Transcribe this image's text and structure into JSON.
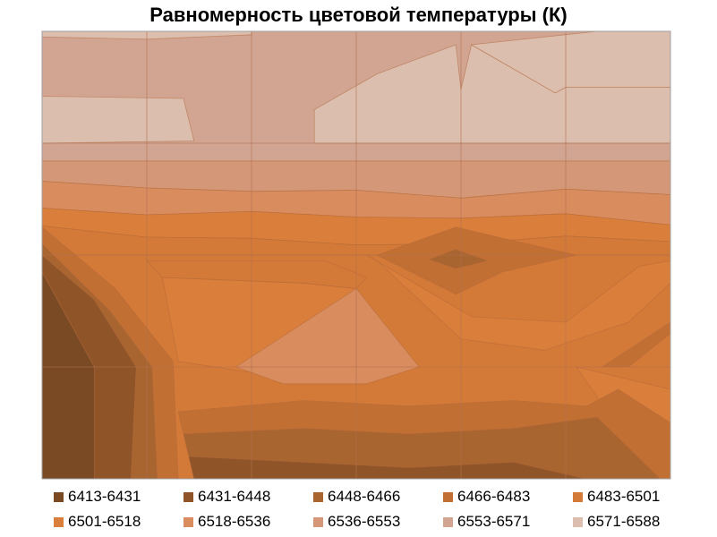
{
  "chart_data": {
    "type": "heatmap",
    "subtype": "contour",
    "title": "Равномерность цветовой температуры (К)",
    "grid": true,
    "legend_position": "bottom",
    "grid_size": {
      "cols": 6,
      "rows": 4
    },
    "legend": [
      {
        "label": "6413-6431",
        "color": "#7a4a25"
      },
      {
        "label": "6431-6448",
        "color": "#8f5529"
      },
      {
        "label": "6448-6466",
        "color": "#a8652f"
      },
      {
        "label": "6466-6483",
        "color": "#c26f33"
      },
      {
        "label": "6483-6501",
        "color": "#d47a38"
      },
      {
        "label": "6501-6518",
        "color": "#da7e3b"
      },
      {
        "label": "6518-6536",
        "color": "#d98d5e"
      },
      {
        "label": "6536-6553",
        "color": "#d49878"
      },
      {
        "label": "6553-6571",
        "color": "#d1a592"
      },
      {
        "label": "6571-6588",
        "color": "#dcbeae"
      }
    ],
    "layers": [
      {
        "band": 4,
        "pts": [
          [
            0,
            0
          ],
          [
            6,
            0
          ],
          [
            6,
            4
          ],
          [
            0,
            4
          ]
        ]
      },
      {
        "band": 8,
        "pts": [
          [
            0,
            0
          ],
          [
            6,
            0
          ],
          [
            6,
            1.16
          ],
          [
            0,
            1.16
          ]
        ]
      },
      {
        "band": 7,
        "pts": [
          [
            0,
            1.16
          ],
          [
            6,
            1.16
          ],
          [
            6,
            1.46
          ],
          [
            5,
            1.41
          ],
          [
            4,
            1.49
          ],
          [
            3,
            1.42
          ],
          [
            2,
            1.43
          ],
          [
            1,
            1.4
          ],
          [
            0,
            1.34
          ]
        ]
      },
      {
        "band": 6,
        "pts": [
          [
            0,
            1.34
          ],
          [
            1,
            1.4
          ],
          [
            2,
            1.43
          ],
          [
            3,
            1.42
          ],
          [
            4,
            1.49
          ],
          [
            5,
            1.41
          ],
          [
            6,
            1.46
          ],
          [
            6,
            1.73
          ],
          [
            5,
            1.63
          ],
          [
            4,
            1.67
          ],
          [
            3,
            1.66
          ],
          [
            2,
            1.61
          ],
          [
            1,
            1.64
          ],
          [
            0,
            1.58
          ]
        ]
      },
      {
        "band": 5,
        "pts": [
          [
            0,
            1.58
          ],
          [
            1,
            1.64
          ],
          [
            2,
            1.61
          ],
          [
            3,
            1.66
          ],
          [
            4,
            1.67
          ],
          [
            5,
            1.63
          ],
          [
            6,
            1.73
          ],
          [
            6,
            1.88
          ],
          [
            5,
            1.83
          ],
          [
            4,
            1.9
          ],
          [
            3,
            1.91
          ],
          [
            2,
            1.85
          ],
          [
            1,
            1.84
          ],
          [
            0,
            1.74
          ]
        ]
      },
      {
        "band": 4,
        "pts": [
          [
            0,
            1.74
          ],
          [
            1,
            1.84
          ],
          [
            2,
            1.85
          ],
          [
            3,
            1.91
          ],
          [
            4,
            1.9
          ],
          [
            5,
            1.83
          ],
          [
            6,
            1.88
          ],
          [
            6,
            2
          ],
          [
            5,
            2
          ],
          [
            4,
            2
          ],
          [
            3,
            2
          ],
          [
            2,
            2
          ],
          [
            1,
            2
          ],
          [
            0,
            2
          ]
        ]
      },
      {
        "band": 3,
        "pts": [
          [
            3.2,
            2
          ],
          [
            3.95,
            1.75
          ],
          [
            4.4,
            1.85
          ],
          [
            5.1,
            2
          ],
          [
            4.4,
            2.15
          ],
          [
            3.95,
            2.35
          ]
        ]
      },
      {
        "band": 2,
        "pts": [
          [
            3.95,
            1.95
          ],
          [
            4.25,
            2.05
          ],
          [
            3.95,
            2.12
          ],
          [
            3.7,
            2.04
          ]
        ]
      },
      {
        "band": 0,
        "pts": [
          [
            0,
            2.15
          ],
          [
            0.5,
            3
          ],
          [
            0.5,
            4
          ],
          [
            0,
            4
          ]
        ]
      },
      {
        "band": 1,
        "pts": [
          [
            0,
            2.15
          ],
          [
            0.5,
            3
          ],
          [
            0.5,
            4
          ],
          [
            0.85,
            4
          ],
          [
            0.9,
            3
          ],
          [
            0.5,
            2.4
          ],
          [
            0,
            2
          ]
        ]
      },
      {
        "band": 2,
        "pts": [
          [
            0.85,
            4
          ],
          [
            0.9,
            3
          ],
          [
            0.5,
            2.4
          ],
          [
            0,
            2
          ],
          [
            0,
            1.9
          ],
          [
            0.65,
            2.5
          ],
          [
            1.05,
            3
          ],
          [
            1.1,
            4
          ]
        ]
      },
      {
        "band": 3,
        "pts": [
          [
            1.1,
            4
          ],
          [
            1.05,
            3
          ],
          [
            0.65,
            2.5
          ],
          [
            0,
            1.9
          ],
          [
            0,
            1.75
          ],
          [
            0.7,
            2.3
          ],
          [
            1.25,
            2.95
          ],
          [
            1.3,
            4
          ]
        ]
      },
      {
        "band": 5,
        "pts": [
          [
            1.15,
            2.2
          ],
          [
            2.5,
            2.25
          ],
          [
            3,
            2.3
          ],
          [
            2.5,
            3.0
          ],
          [
            2,
            3.05
          ],
          [
            1.3,
            2.95
          ]
        ]
      },
      {
        "band": 4,
        "pts": [
          [
            1,
            2.05
          ],
          [
            2.7,
            2.05
          ],
          [
            3.1,
            2.2
          ],
          [
            3,
            2.3
          ],
          [
            2.5,
            2.25
          ],
          [
            1.15,
            2.2
          ]
        ]
      },
      {
        "band": 7,
        "pts": [
          [
            2.03,
            3.0
          ],
          [
            3.0,
            2.45
          ],
          [
            3.45,
            3.0
          ],
          [
            2.9,
            3.02
          ]
        ]
      },
      {
        "band": 6,
        "pts": [
          [
            1.85,
            3.0
          ],
          [
            3.0,
            2.3
          ],
          [
            3.6,
            3.0
          ],
          [
            3.1,
            3.15
          ],
          [
            2.3,
            3.15
          ]
        ]
      },
      {
        "band": 5,
        "pts": [
          [
            3.1,
            2.0
          ],
          [
            4.1,
            2.55
          ],
          [
            5.0,
            2.6
          ],
          [
            5.7,
            2.1
          ],
          [
            6,
            2.05
          ],
          [
            6,
            2.25
          ],
          [
            5.6,
            2.6
          ],
          [
            4.8,
            2.85
          ],
          [
            4.0,
            2.75
          ],
          [
            3.2,
            2.05
          ]
        ]
      },
      {
        "band": 5,
        "pts": [
          [
            5.1,
            3.0
          ],
          [
            6,
            3.2
          ],
          [
            6,
            4
          ],
          [
            5.9,
            4
          ],
          [
            5.4,
            3.4
          ]
        ]
      },
      {
        "band": 3,
        "pts": [
          [
            5.35,
            3.0
          ],
          [
            6,
            2.6
          ],
          [
            6,
            2.7
          ],
          [
            5.6,
            3.0
          ]
        ]
      },
      {
        "band": 3,
        "pts": [
          [
            1.3,
            3.4
          ],
          [
            2.5,
            3.3
          ],
          [
            3.5,
            3.35
          ],
          [
            4.5,
            3.3
          ],
          [
            5.2,
            3.35
          ],
          [
            5.5,
            3.2
          ],
          [
            6,
            3.5
          ],
          [
            6,
            4
          ],
          [
            5.9,
            4
          ],
          [
            5.3,
            3.45
          ],
          [
            4.5,
            3.55
          ],
          [
            3.5,
            3.6
          ],
          [
            2.5,
            3.55
          ],
          [
            1.35,
            3.6
          ]
        ]
      },
      {
        "band": 2,
        "pts": [
          [
            1.35,
            3.6
          ],
          [
            2.5,
            3.55
          ],
          [
            3.5,
            3.6
          ],
          [
            4.5,
            3.55
          ],
          [
            5.3,
            3.45
          ],
          [
            5.9,
            4
          ],
          [
            5.2,
            4
          ],
          [
            4.5,
            3.85
          ],
          [
            3.5,
            3.9
          ],
          [
            2.5,
            3.85
          ],
          [
            1.4,
            3.8
          ]
        ]
      },
      {
        "band": 1,
        "pts": [
          [
            1.4,
            3.8
          ],
          [
            2.5,
            3.85
          ],
          [
            3.5,
            3.9
          ],
          [
            4.5,
            3.85
          ],
          [
            5.2,
            4
          ],
          [
            1.45,
            4
          ]
        ]
      },
      {
        "band": 8,
        "pts": [
          [
            0,
            0
          ],
          [
            2,
            0
          ],
          [
            2,
            0.03
          ],
          [
            1,
            0.03
          ],
          [
            0,
            0.03
          ]
        ]
      },
      {
        "band": 9,
        "pts": [
          [
            0,
            0.05
          ],
          [
            1,
            0.07
          ],
          [
            2,
            0.03
          ],
          [
            2,
            0
          ],
          [
            0,
            0
          ]
        ]
      },
      {
        "band": 9,
        "pts": [
          [
            0,
            0.58
          ],
          [
            1.35,
            0.6
          ],
          [
            1.45,
            0.98
          ],
          [
            0,
            1.0
          ]
        ]
      },
      {
        "band": 9,
        "pts": [
          [
            2.6,
            0.7
          ],
          [
            3.2,
            0.38
          ],
          [
            3.95,
            0.12
          ],
          [
            4.0,
            0.52
          ],
          [
            4.1,
            0.12
          ],
          [
            4.9,
            0.55
          ],
          [
            5.0,
            0.5
          ],
          [
            6,
            0.5
          ],
          [
            6,
            1.0
          ],
          [
            2.6,
            1.0
          ]
        ]
      },
      {
        "band": 9,
        "pts": [
          [
            4.1,
            0.12
          ],
          [
            5.3,
            0
          ],
          [
            6,
            0
          ],
          [
            6,
            0.5
          ],
          [
            5.0,
            0.5
          ],
          [
            4.9,
            0.55
          ]
        ]
      }
    ]
  }
}
